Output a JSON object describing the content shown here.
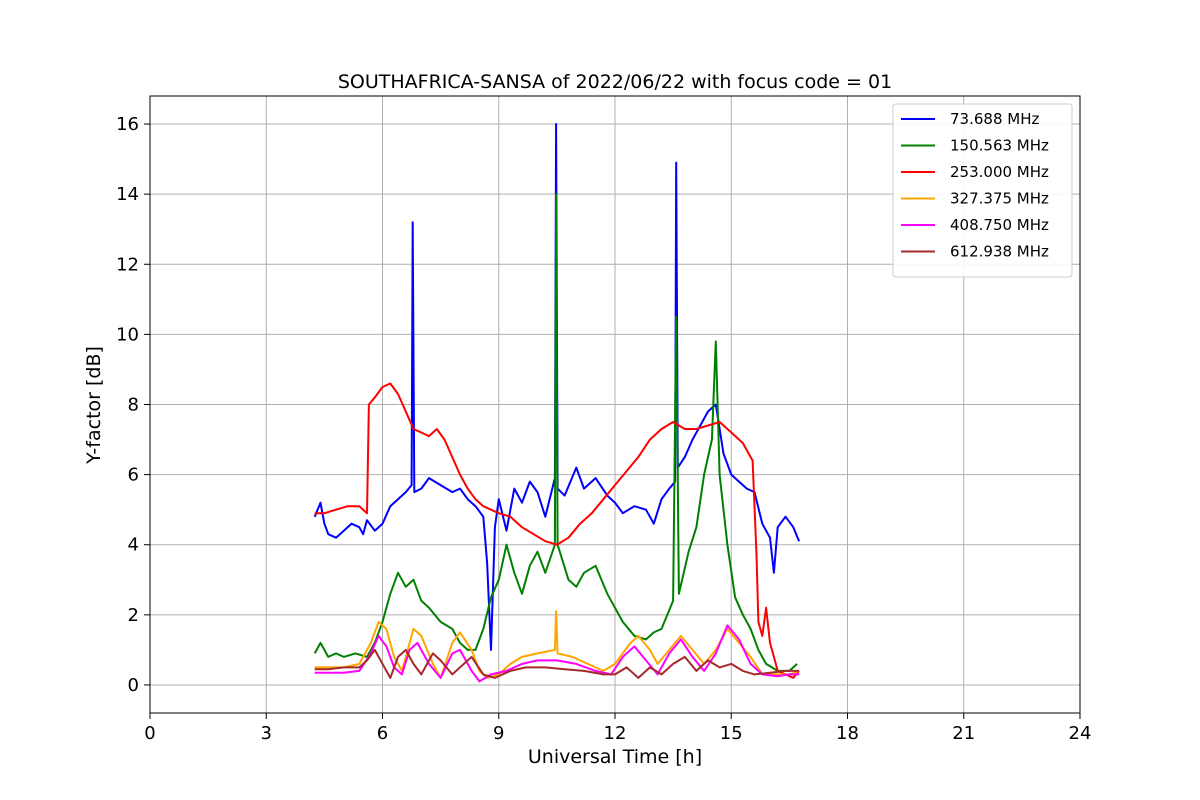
{
  "chart_data": {
    "type": "line",
    "title": "SOUTHAFRICA-SANSA of 2022/06/22 with focus code = 01",
    "xlabel": "Universal Time [h]",
    "ylabel": "Y-factor [dB]",
    "xlim": [
      0,
      24
    ],
    "ylim": [
      -0.8,
      16.8
    ],
    "xticks": [
      0,
      3,
      6,
      9,
      12,
      15,
      18,
      21,
      24
    ],
    "yticks": [
      0,
      2,
      4,
      6,
      8,
      10,
      12,
      14,
      16
    ],
    "grid": true,
    "legend_position": "top-right",
    "series": [
      {
        "name": " 73.688 MHz",
        "color": "#0000ff",
        "points": [
          [
            4.25,
            4.8
          ],
          [
            4.4,
            5.2
          ],
          [
            4.5,
            4.6
          ],
          [
            4.6,
            4.3
          ],
          [
            4.8,
            4.2
          ],
          [
            5.0,
            4.4
          ],
          [
            5.2,
            4.6
          ],
          [
            5.4,
            4.5
          ],
          [
            5.5,
            4.3
          ],
          [
            5.6,
            4.7
          ],
          [
            5.8,
            4.4
          ],
          [
            6.0,
            4.6
          ],
          [
            6.2,
            5.1
          ],
          [
            6.4,
            5.3
          ],
          [
            6.6,
            5.5
          ],
          [
            6.75,
            5.7
          ],
          [
            6.78,
            13.2
          ],
          [
            6.82,
            5.5
          ],
          [
            7.0,
            5.6
          ],
          [
            7.2,
            5.9
          ],
          [
            7.5,
            5.7
          ],
          [
            7.8,
            5.5
          ],
          [
            8.0,
            5.6
          ],
          [
            8.2,
            5.3
          ],
          [
            8.4,
            5.1
          ],
          [
            8.6,
            4.8
          ],
          [
            8.7,
            3.5
          ],
          [
            8.8,
            1.0
          ],
          [
            8.9,
            4.5
          ],
          [
            9.0,
            5.3
          ],
          [
            9.2,
            4.4
          ],
          [
            9.4,
            5.6
          ],
          [
            9.6,
            5.2
          ],
          [
            9.8,
            5.8
          ],
          [
            10.0,
            5.5
          ],
          [
            10.2,
            4.8
          ],
          [
            10.45,
            5.9
          ],
          [
            10.48,
            16.0
          ],
          [
            10.52,
            5.6
          ],
          [
            10.7,
            5.4
          ],
          [
            11.0,
            6.2
          ],
          [
            11.2,
            5.6
          ],
          [
            11.5,
            5.9
          ],
          [
            11.8,
            5.4
          ],
          [
            12.0,
            5.2
          ],
          [
            12.2,
            4.9
          ],
          [
            12.5,
            5.1
          ],
          [
            12.8,
            5.0
          ],
          [
            13.0,
            4.6
          ],
          [
            13.2,
            5.3
          ],
          [
            13.4,
            5.6
          ],
          [
            13.55,
            5.8
          ],
          [
            13.58,
            14.9
          ],
          [
            13.62,
            6.2
          ],
          [
            13.8,
            6.5
          ],
          [
            14.0,
            7.0
          ],
          [
            14.2,
            7.4
          ],
          [
            14.4,
            7.8
          ],
          [
            14.6,
            8.0
          ],
          [
            14.8,
            6.6
          ],
          [
            15.0,
            6.0
          ],
          [
            15.2,
            5.8
          ],
          [
            15.4,
            5.6
          ],
          [
            15.6,
            5.5
          ],
          [
            15.8,
            4.6
          ],
          [
            16.0,
            4.2
          ],
          [
            16.1,
            3.2
          ],
          [
            16.2,
            4.5
          ],
          [
            16.4,
            4.8
          ],
          [
            16.6,
            4.5
          ],
          [
            16.75,
            4.1
          ]
        ]
      },
      {
        "name": "150.563 MHz",
        "color": "#008000",
        "points": [
          [
            4.25,
            0.9
          ],
          [
            4.4,
            1.2
          ],
          [
            4.6,
            0.8
          ],
          [
            4.8,
            0.9
          ],
          [
            5.0,
            0.8
          ],
          [
            5.3,
            0.9
          ],
          [
            5.6,
            0.8
          ],
          [
            5.8,
            1.2
          ],
          [
            6.0,
            1.8
          ],
          [
            6.2,
            2.6
          ],
          [
            6.4,
            3.2
          ],
          [
            6.6,
            2.8
          ],
          [
            6.8,
            3.0
          ],
          [
            7.0,
            2.4
          ],
          [
            7.2,
            2.2
          ],
          [
            7.5,
            1.8
          ],
          [
            7.8,
            1.6
          ],
          [
            8.0,
            1.2
          ],
          [
            8.2,
            1.0
          ],
          [
            8.4,
            1.0
          ],
          [
            8.6,
            1.6
          ],
          [
            8.8,
            2.5
          ],
          [
            9.0,
            3.0
          ],
          [
            9.2,
            4.0
          ],
          [
            9.4,
            3.2
          ],
          [
            9.6,
            2.6
          ],
          [
            9.8,
            3.4
          ],
          [
            10.0,
            3.8
          ],
          [
            10.2,
            3.2
          ],
          [
            10.45,
            4.0
          ],
          [
            10.48,
            14.0
          ],
          [
            10.52,
            4.0
          ],
          [
            10.8,
            3.0
          ],
          [
            11.0,
            2.8
          ],
          [
            11.2,
            3.2
          ],
          [
            11.5,
            3.4
          ],
          [
            11.8,
            2.6
          ],
          [
            12.0,
            2.2
          ],
          [
            12.2,
            1.8
          ],
          [
            12.5,
            1.4
          ],
          [
            12.8,
            1.3
          ],
          [
            13.0,
            1.5
          ],
          [
            13.2,
            1.6
          ],
          [
            13.5,
            2.4
          ],
          [
            13.58,
            10.5
          ],
          [
            13.65,
            2.6
          ],
          [
            13.9,
            3.8
          ],
          [
            14.1,
            4.5
          ],
          [
            14.3,
            6.0
          ],
          [
            14.5,
            7.0
          ],
          [
            14.6,
            9.8
          ],
          [
            14.7,
            6.0
          ],
          [
            14.9,
            4.0
          ],
          [
            15.1,
            2.5
          ],
          [
            15.3,
            2.0
          ],
          [
            15.5,
            1.6
          ],
          [
            15.7,
            1.0
          ],
          [
            15.9,
            0.6
          ],
          [
            16.2,
            0.4
          ],
          [
            16.5,
            0.4
          ],
          [
            16.7,
            0.6
          ]
        ]
      },
      {
        "name": "253.000 MHz",
        "color": "#ff0000",
        "points": [
          [
            4.25,
            4.9
          ],
          [
            4.5,
            4.9
          ],
          [
            4.8,
            5.0
          ],
          [
            5.1,
            5.1
          ],
          [
            5.4,
            5.1
          ],
          [
            5.6,
            4.9
          ],
          [
            5.65,
            8.0
          ],
          [
            5.8,
            8.2
          ],
          [
            6.0,
            8.5
          ],
          [
            6.2,
            8.6
          ],
          [
            6.4,
            8.3
          ],
          [
            6.6,
            7.8
          ],
          [
            6.8,
            7.3
          ],
          [
            7.0,
            7.2
          ],
          [
            7.2,
            7.1
          ],
          [
            7.4,
            7.3
          ],
          [
            7.6,
            7.0
          ],
          [
            7.8,
            6.5
          ],
          [
            8.0,
            6.0
          ],
          [
            8.2,
            5.6
          ],
          [
            8.4,
            5.3
          ],
          [
            8.6,
            5.1
          ],
          [
            8.8,
            5.0
          ],
          [
            9.0,
            4.9
          ],
          [
            9.3,
            4.8
          ],
          [
            9.6,
            4.5
          ],
          [
            9.9,
            4.3
          ],
          [
            10.2,
            4.1
          ],
          [
            10.5,
            4.0
          ],
          [
            10.8,
            4.2
          ],
          [
            11.1,
            4.6
          ],
          [
            11.4,
            4.9
          ],
          [
            11.7,
            5.3
          ],
          [
            12.0,
            5.7
          ],
          [
            12.3,
            6.1
          ],
          [
            12.6,
            6.5
          ],
          [
            12.9,
            7.0
          ],
          [
            13.2,
            7.3
          ],
          [
            13.5,
            7.5
          ],
          [
            13.8,
            7.3
          ],
          [
            14.1,
            7.3
          ],
          [
            14.4,
            7.4
          ],
          [
            14.7,
            7.5
          ],
          [
            15.0,
            7.2
          ],
          [
            15.3,
            6.9
          ],
          [
            15.55,
            6.4
          ],
          [
            15.65,
            3.8
          ],
          [
            15.7,
            1.8
          ],
          [
            15.8,
            1.4
          ],
          [
            15.9,
            2.2
          ],
          [
            16.0,
            1.2
          ],
          [
            16.1,
            0.8
          ],
          [
            16.2,
            0.4
          ],
          [
            16.4,
            0.3
          ],
          [
            16.6,
            0.2
          ],
          [
            16.75,
            0.4
          ]
        ]
      },
      {
        "name": "327.375 MHz",
        "color": "#ffa500",
        "points": [
          [
            4.25,
            0.5
          ],
          [
            4.6,
            0.5
          ],
          [
            5.0,
            0.5
          ],
          [
            5.4,
            0.6
          ],
          [
            5.7,
            1.2
          ],
          [
            5.9,
            1.8
          ],
          [
            6.1,
            1.6
          ],
          [
            6.3,
            0.8
          ],
          [
            6.5,
            0.4
          ],
          [
            6.8,
            1.6
          ],
          [
            7.0,
            1.4
          ],
          [
            7.3,
            0.6
          ],
          [
            7.5,
            0.2
          ],
          [
            7.8,
            1.2
          ],
          [
            8.0,
            1.5
          ],
          [
            8.3,
            1.0
          ],
          [
            8.5,
            0.4
          ],
          [
            8.7,
            0.2
          ],
          [
            9.0,
            0.3
          ],
          [
            9.3,
            0.6
          ],
          [
            9.6,
            0.8
          ],
          [
            10.0,
            0.9
          ],
          [
            10.45,
            1.0
          ],
          [
            10.48,
            2.1
          ],
          [
            10.52,
            0.9
          ],
          [
            10.9,
            0.8
          ],
          [
            11.3,
            0.6
          ],
          [
            11.7,
            0.4
          ],
          [
            12.0,
            0.6
          ],
          [
            12.4,
            1.2
          ],
          [
            12.6,
            1.4
          ],
          [
            12.9,
            1.0
          ],
          [
            13.1,
            0.6
          ],
          [
            13.4,
            1.0
          ],
          [
            13.7,
            1.4
          ],
          [
            14.0,
            1.0
          ],
          [
            14.3,
            0.6
          ],
          [
            14.6,
            1.0
          ],
          [
            14.9,
            1.6
          ],
          [
            15.2,
            1.2
          ],
          [
            15.5,
            0.8
          ],
          [
            15.8,
            0.3
          ],
          [
            16.2,
            0.3
          ],
          [
            16.5,
            0.3
          ],
          [
            16.75,
            0.4
          ]
        ]
      },
      {
        "name": "408.750 MHz",
        "color": "#ff00ff",
        "points": [
          [
            4.25,
            0.35
          ],
          [
            4.6,
            0.35
          ],
          [
            5.0,
            0.35
          ],
          [
            5.4,
            0.4
          ],
          [
            5.7,
            0.9
          ],
          [
            5.9,
            1.4
          ],
          [
            6.1,
            1.1
          ],
          [
            6.3,
            0.5
          ],
          [
            6.5,
            0.3
          ],
          [
            6.7,
            1.0
          ],
          [
            6.9,
            1.2
          ],
          [
            7.2,
            0.6
          ],
          [
            7.5,
            0.2
          ],
          [
            7.8,
            0.9
          ],
          [
            8.0,
            1.0
          ],
          [
            8.3,
            0.4
          ],
          [
            8.5,
            0.1
          ],
          [
            8.8,
            0.3
          ],
          [
            9.2,
            0.4
          ],
          [
            9.6,
            0.6
          ],
          [
            10.0,
            0.7
          ],
          [
            10.5,
            0.7
          ],
          [
            11.0,
            0.6
          ],
          [
            11.5,
            0.4
          ],
          [
            11.9,
            0.3
          ],
          [
            12.2,
            0.8
          ],
          [
            12.5,
            1.1
          ],
          [
            12.8,
            0.7
          ],
          [
            13.1,
            0.3
          ],
          [
            13.4,
            0.9
          ],
          [
            13.7,
            1.3
          ],
          [
            14.0,
            0.8
          ],
          [
            14.3,
            0.4
          ],
          [
            14.6,
            0.9
          ],
          [
            14.9,
            1.7
          ],
          [
            15.2,
            1.3
          ],
          [
            15.5,
            0.6
          ],
          [
            15.8,
            0.3
          ],
          [
            16.2,
            0.25
          ],
          [
            16.5,
            0.3
          ],
          [
            16.75,
            0.3
          ]
        ]
      },
      {
        "name": "612.938 MHz",
        "color": "#a52a2a",
        "points": [
          [
            4.25,
            0.45
          ],
          [
            4.6,
            0.45
          ],
          [
            5.0,
            0.5
          ],
          [
            5.4,
            0.5
          ],
          [
            5.6,
            0.7
          ],
          [
            5.8,
            1.0
          ],
          [
            6.0,
            0.6
          ],
          [
            6.2,
            0.2
          ],
          [
            6.4,
            0.8
          ],
          [
            6.6,
            1.0
          ],
          [
            6.8,
            0.6
          ],
          [
            7.0,
            0.3
          ],
          [
            7.3,
            0.9
          ],
          [
            7.5,
            0.7
          ],
          [
            7.8,
            0.3
          ],
          [
            8.0,
            0.5
          ],
          [
            8.3,
            0.8
          ],
          [
            8.6,
            0.3
          ],
          [
            8.9,
            0.2
          ],
          [
            9.3,
            0.4
          ],
          [
            9.7,
            0.5
          ],
          [
            10.2,
            0.5
          ],
          [
            10.7,
            0.45
          ],
          [
            11.2,
            0.4
          ],
          [
            11.7,
            0.3
          ],
          [
            12.0,
            0.3
          ],
          [
            12.3,
            0.5
          ],
          [
            12.6,
            0.2
          ],
          [
            12.9,
            0.5
          ],
          [
            13.2,
            0.3
          ],
          [
            13.5,
            0.6
          ],
          [
            13.8,
            0.8
          ],
          [
            14.1,
            0.4
          ],
          [
            14.4,
            0.7
          ],
          [
            14.7,
            0.5
          ],
          [
            15.0,
            0.6
          ],
          [
            15.3,
            0.4
          ],
          [
            15.6,
            0.3
          ],
          [
            16.0,
            0.35
          ],
          [
            16.4,
            0.4
          ],
          [
            16.75,
            0.4
          ]
        ]
      }
    ]
  }
}
